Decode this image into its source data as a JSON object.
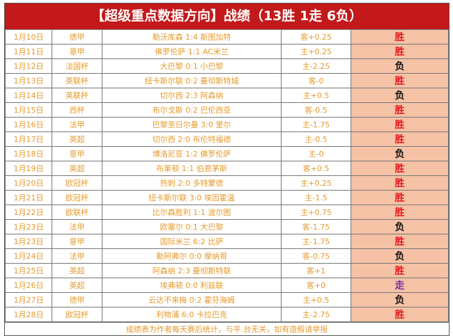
{
  "title": "【超级重点数据方向】战绩（13胜 1走 6负）",
  "colors": {
    "win": "#e8161c",
    "loss": "#111111",
    "draw": "#7030a0",
    "header_bg": "#c3191b",
    "text": "#e59a2e",
    "result_bg": "#f5c2a6"
  },
  "rows": [
    {
      "date": "1月10日",
      "league": "德甲",
      "match": "勒沃库森 1:4 斯图加特",
      "handicap": "客+0.25",
      "result": "胜"
    },
    {
      "date": "1月11日",
      "league": "意甲",
      "match": "佛罗伦萨 1:1 AC米兰",
      "handicap": "主+0.25",
      "result": "胜"
    },
    {
      "date": "1月12日",
      "league": "法国杯",
      "match": "大巴黎 0:1 小巴黎",
      "handicap": "主-2.25",
      "result": "负"
    },
    {
      "date": "1月13日",
      "league": "英联杯",
      "match": "纽卡斯尔联 0:2 曼彻斯特城",
      "handicap": "客-0",
      "result": "胜"
    },
    {
      "date": "1月14日",
      "league": "英联杯",
      "match": "切尔西 2:3 阿森纳",
      "handicap": "主+0.5",
      "result": "负"
    },
    {
      "date": "1月15日",
      "league": "西杯",
      "match": "布尔戈斯 0:2 巴伦西亚",
      "handicap": "客-0.5",
      "result": "胜"
    },
    {
      "date": "1月16日",
      "league": "法甲",
      "match": "巴黎圣日尔曼 3:0 里尔",
      "handicap": "主-1.75",
      "result": "胜"
    },
    {
      "date": "1月17日",
      "league": "英超",
      "match": "切尔西 2:0 布伦特福德",
      "handicap": "主-0.5",
      "result": "胜"
    },
    {
      "date": "1月18日",
      "league": "意甲",
      "match": "博洛尼亚 1:2 佛罗伦萨",
      "handicap": "主-0",
      "result": "负"
    },
    {
      "date": "1月19日",
      "league": "英超",
      "match": "布莱顿 1:1 伯恩茅斯",
      "handicap": "客+0.5",
      "result": "胜"
    },
    {
      "date": "1月20日",
      "league": "欧冠杯",
      "match": "热刺 2:0 多特蒙德",
      "handicap": "主+0.25",
      "result": "胜"
    },
    {
      "date": "1月21日",
      "league": "欧冠杯",
      "match": "纽卡斯尔联 3:0 埃因霍温",
      "handicap": "主-1.5",
      "result": "胜"
    },
    {
      "date": "1月22日",
      "league": "欧联杯",
      "match": "比尔森胜利 1:1 波尔图",
      "handicap": "主+0.75",
      "result": "胜"
    },
    {
      "date": "1月23日",
      "league": "法甲",
      "match": "欧塞尔 0:1 大巴黎",
      "handicap": "客-1.75",
      "result": "负"
    },
    {
      "date": "1月23日",
      "league": "意甲",
      "match": "国际米兰 6:2 比萨",
      "handicap": "主-1.75",
      "result": "胜"
    },
    {
      "date": "1月24日",
      "league": "法甲",
      "match": "勒阿弗尔 0:0 摩纳哥",
      "handicap": "客-0.75",
      "result": "负"
    },
    {
      "date": "1月25日",
      "league": "英超",
      "match": "阿森纳 2:3 曼彻斯特联",
      "handicap": "客+1",
      "result": "胜"
    },
    {
      "date": "1月26日",
      "league": "英超",
      "match": "埃弗顿 0:0 利兹联",
      "handicap": "客+0",
      "result": "走"
    },
    {
      "date": "1月27日",
      "league": "德甲",
      "match": "云达不来梅 0:2 霍芬海姆",
      "handicap": "主+0.5",
      "result": "负"
    },
    {
      "date": "1月28日",
      "league": "欧冠杯",
      "match": "利物浦 6:0 卡拉巴克",
      "handicap": "主-2.75",
      "result": "胜"
    }
  ],
  "footer": "成绩表为作者每天赛后统计，与平.台无关，如有造假请举报"
}
